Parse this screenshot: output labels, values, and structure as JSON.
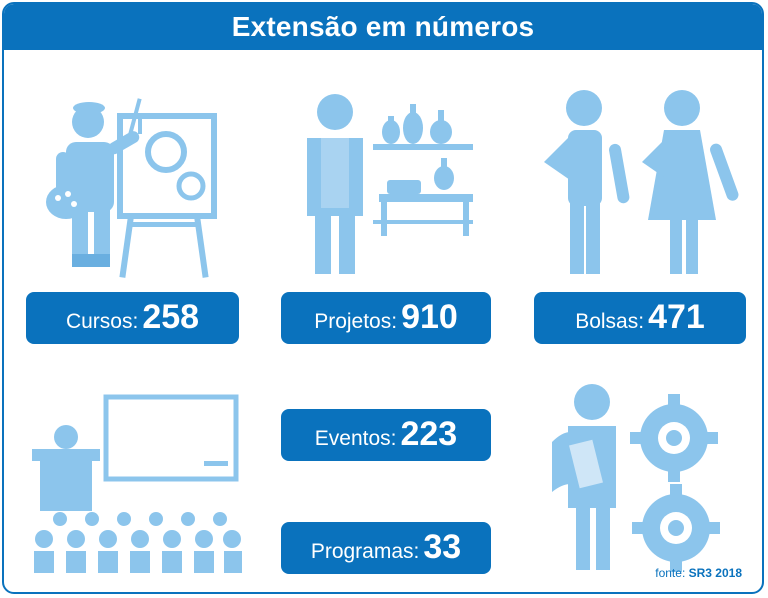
{
  "title": "Extensão em números",
  "stats": [
    {
      "label": "Cursos:",
      "value": "258"
    },
    {
      "label": "Projetos:",
      "value": "910"
    },
    {
      "label": "Bolsas:",
      "value": "471"
    },
    {
      "label": "Eventos:",
      "value": "223"
    },
    {
      "label": "Programas:",
      "value": "33"
    }
  ],
  "source": {
    "prefix": "fonte:",
    "name": "SR3 2018"
  },
  "colors": {
    "primary": "#0a72bd",
    "light": "#8cc5ec",
    "mid": "#6aafe0"
  },
  "icons": [
    "painter-at-easel-icon",
    "potter-with-vases-icon",
    "students-with-books-icon",
    "teacher-classroom-icon",
    "person-with-gears-icon"
  ]
}
